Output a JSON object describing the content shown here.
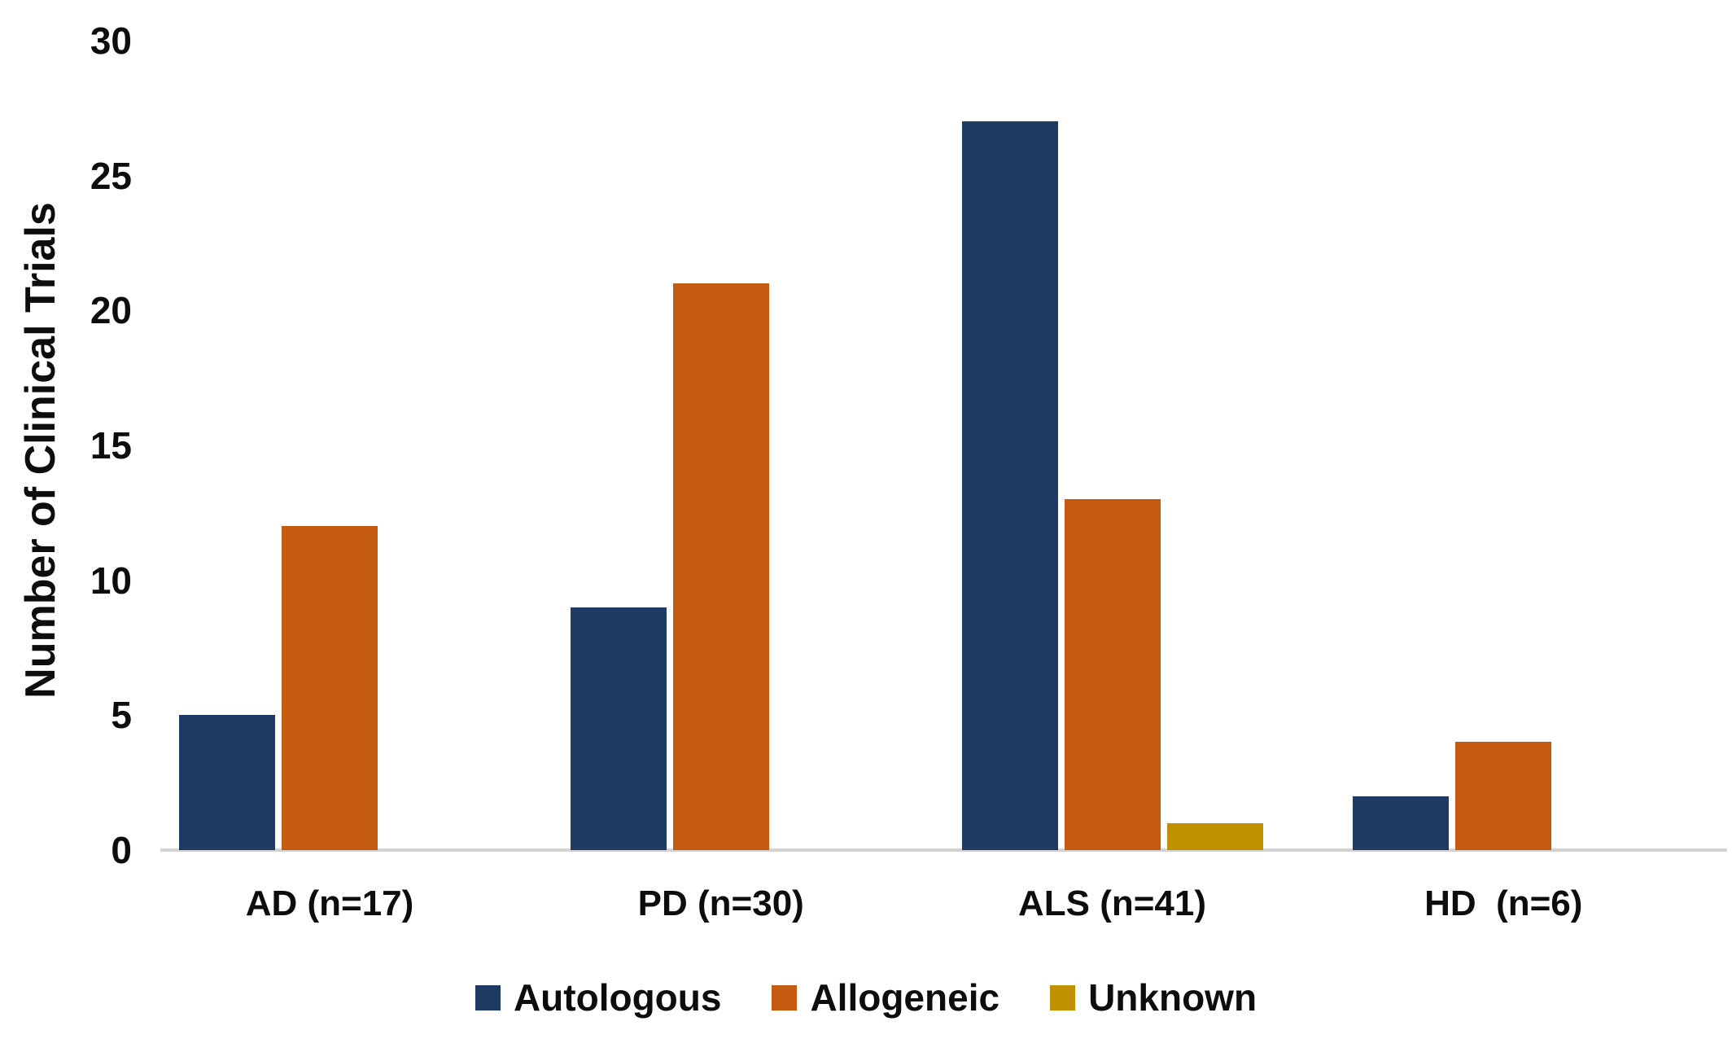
{
  "chart_data": {
    "type": "bar",
    "title": "",
    "ylabel": "Number of Clinical Trials",
    "xlabel": "",
    "ylim": [
      0,
      30
    ],
    "yticks": [
      0,
      5,
      10,
      15,
      20,
      25,
      30
    ],
    "grid": false,
    "legend_position": "bottom-center",
    "categories": [
      "AD (n=17)",
      "PD (n=30)",
      "ALS (n=41)",
      "HD  (n=6)"
    ],
    "series": [
      {
        "name": "Autologous",
        "color": "#1F3A63",
        "values": [
          5,
          9,
          27,
          2
        ]
      },
      {
        "name": "Allogeneic",
        "color": "#C55A11",
        "values": [
          12,
          21,
          13,
          4
        ]
      },
      {
        "name": "Unknown",
        "color": "#BF9000",
        "values": [
          0,
          0,
          1,
          0
        ]
      }
    ],
    "axis_line_color": "#D3D3D3",
    "background_color": "#FFFFFF",
    "text_color": "#0D0D0D"
  }
}
